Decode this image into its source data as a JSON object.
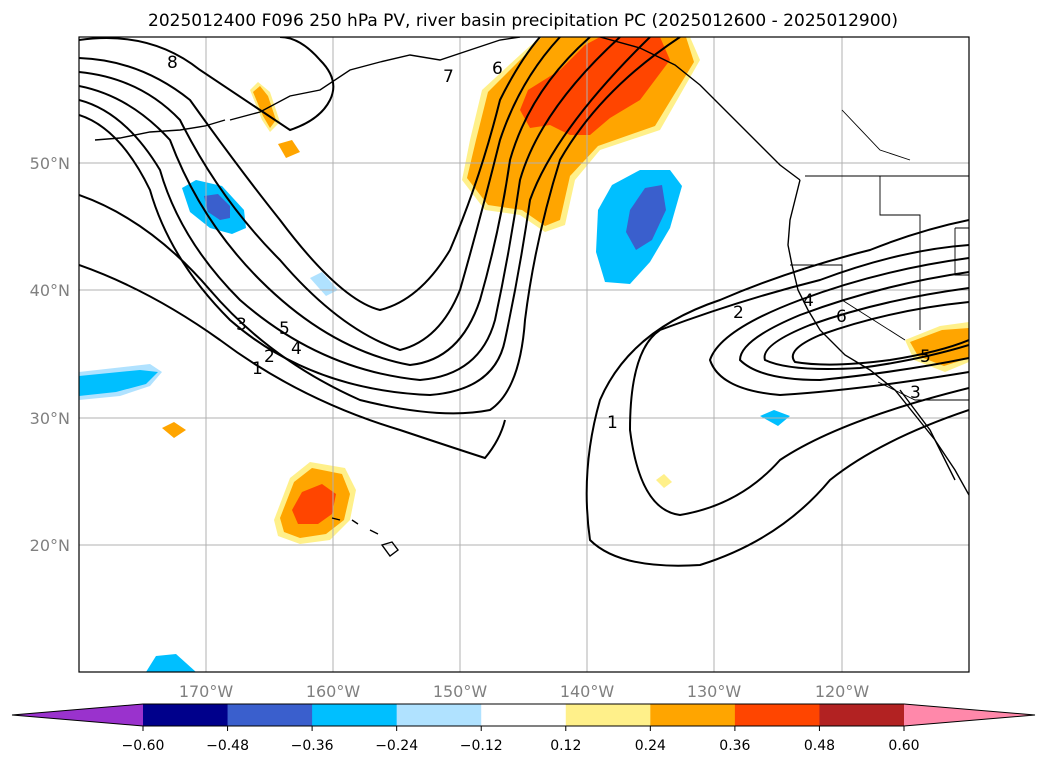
{
  "title": "2025012400 F096 250 hPa PV, river basin precipitation PC (2025012600 - 2025012900)",
  "lat_labels": [
    "50°N",
    "40°N",
    "30°N",
    "20°N"
  ],
  "lon_labels": [
    "170°W",
    "160°W",
    "150°W",
    "140°W",
    "130°W",
    "120°W"
  ],
  "colorbar": {
    "ticks": [
      "−0.60",
      "−0.48",
      "−0.36",
      "−0.24",
      "−0.12",
      "0.12",
      "0.24",
      "0.36",
      "0.48",
      "0.60"
    ],
    "colors": [
      "#9a32cd",
      "#00008b",
      "#3a5fcd",
      "#00bfff",
      "#b0e2ff",
      "#ffffff",
      "#fff08a",
      "#ffa500",
      "#ff4500",
      "#b22222",
      "#ff88aa"
    ]
  },
  "contour_labels": {
    "c8": "8",
    "c7": "7",
    "c6": "6",
    "c3": "3",
    "c5": "5",
    "c4": "4",
    "c2w": "2",
    "c1w": "1",
    "c1": "1",
    "c2e": "2",
    "c4e": "4",
    "c6e": "6",
    "c5e": "5",
    "c3e": "3"
  }
}
